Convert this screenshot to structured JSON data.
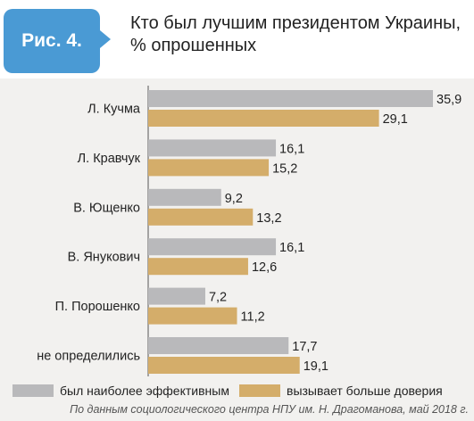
{
  "header": {
    "figure_label": "Рис. 4.",
    "title_line1": "Кто был лучшим президентом Украины,",
    "title_line2": "% опрошенных"
  },
  "colors": {
    "badge": "#4a9ad4",
    "series_effective": "#b9b9bb",
    "series_trust": "#d4ad6a",
    "panel_bg": "#f2f1ef"
  },
  "chart_data": {
    "type": "bar",
    "orientation": "horizontal",
    "title": "Кто был лучшим президентом Украины, % опрошенных",
    "categories": [
      "Л. Кучма",
      "Л. Кравчук",
      "В. Ющенко",
      "В. Янукович",
      "П. Порошенко",
      "не определились"
    ],
    "series": [
      {
        "name": "был наиболее эффективным",
        "values": [
          35.9,
          16.1,
          9.2,
          16.1,
          7.2,
          17.7
        ],
        "labels": [
          "35,9",
          "16,1",
          "9,2",
          "16,1",
          "7,2",
          "17,7"
        ]
      },
      {
        "name": "вызывает больше доверия",
        "values": [
          29.1,
          15.2,
          13.2,
          12.6,
          11.2,
          19.1
        ],
        "labels": [
          "29,1",
          "15,2",
          "13,2",
          "12,6",
          "11,2",
          "19,1"
        ]
      }
    ],
    "xlim": [
      0,
      40
    ],
    "legend_position": "bottom",
    "grid": false
  },
  "footer": {
    "source": "По данным социологического центра НПУ им. Н. Драгоманова, май 2018 г."
  }
}
